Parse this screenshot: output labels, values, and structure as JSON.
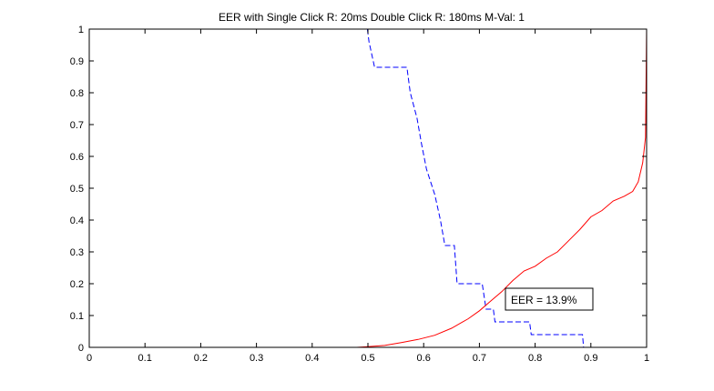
{
  "chart_data": {
    "type": "line",
    "title": "EER with Single Click R: 20ms Double Click R: 180ms M-Val: 1",
    "xlabel": "",
    "ylabel": "",
    "xlim": [
      0,
      1
    ],
    "ylim": [
      0,
      1
    ],
    "grid": false,
    "x_ticks": [
      "0",
      "0.1",
      "0.2",
      "0.3",
      "0.4",
      "0.5",
      "0.6",
      "0.7",
      "0.8",
      "0.9",
      "1"
    ],
    "y_ticks": [
      "0",
      "0.1",
      "0.2",
      "0.3",
      "0.4",
      "0.5",
      "0.6",
      "0.7",
      "0.8",
      "0.9",
      "1"
    ],
    "series": [
      {
        "style": "dashed",
        "color": "#0000ff",
        "points": [
          [
            0.499,
            1.0
          ],
          [
            0.502,
            0.96
          ],
          [
            0.512,
            0.88
          ],
          [
            0.57,
            0.88
          ],
          [
            0.576,
            0.8
          ],
          [
            0.588,
            0.72
          ],
          [
            0.596,
            0.64
          ],
          [
            0.605,
            0.56
          ],
          [
            0.62,
            0.48
          ],
          [
            0.63,
            0.4
          ],
          [
            0.638,
            0.32
          ],
          [
            0.655,
            0.32
          ],
          [
            0.66,
            0.2
          ],
          [
            0.705,
            0.2
          ],
          [
            0.712,
            0.12
          ],
          [
            0.725,
            0.12
          ],
          [
            0.728,
            0.08
          ],
          [
            0.79,
            0.08
          ],
          [
            0.793,
            0.04
          ],
          [
            0.885,
            0.04
          ],
          [
            0.887,
            0.0
          ]
        ]
      },
      {
        "style": "solid",
        "color": "#ff0000",
        "points": [
          [
            0.48,
            0.0
          ],
          [
            0.5,
            0.002
          ],
          [
            0.53,
            0.006
          ],
          [
            0.56,
            0.015
          ],
          [
            0.59,
            0.025
          ],
          [
            0.62,
            0.038
          ],
          [
            0.65,
            0.06
          ],
          [
            0.68,
            0.09
          ],
          [
            0.7,
            0.115
          ],
          [
            0.72,
            0.145
          ],
          [
            0.74,
            0.175
          ],
          [
            0.76,
            0.21
          ],
          [
            0.78,
            0.24
          ],
          [
            0.8,
            0.255
          ],
          [
            0.82,
            0.28
          ],
          [
            0.84,
            0.3
          ],
          [
            0.86,
            0.335
          ],
          [
            0.88,
            0.37
          ],
          [
            0.9,
            0.41
          ],
          [
            0.92,
            0.43
          ],
          [
            0.94,
            0.46
          ],
          [
            0.96,
            0.475
          ],
          [
            0.975,
            0.49
          ],
          [
            0.985,
            0.52
          ],
          [
            0.993,
            0.58
          ],
          [
            0.998,
            0.66
          ],
          [
            1.0,
            1.0
          ]
        ]
      }
    ],
    "annotation": {
      "text": "EER = 13.9%",
      "x": 0.75,
      "y": 0.14
    }
  }
}
